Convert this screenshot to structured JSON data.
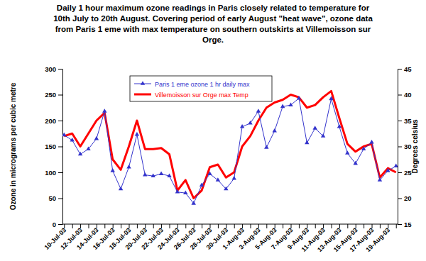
{
  "chart_data": {
    "type": "line",
    "title": [
      "Daily 1 hour maximum ozone readings in Paris closely related to temperature for",
      "10th July to 20th August. Covering period of early August \"heat wave\", ozone data",
      "from Paris 1 eme with max temperature on southern outskirts at Villemoisson sur",
      "Orge."
    ],
    "y_label": "Ozone in micrograms per cubic metre",
    "y2_label": "Degrees celsius",
    "categories": [
      "10-Jul-03",
      null,
      "12-Jul-03",
      null,
      "14-Jul-03",
      null,
      "16-Jul-03",
      null,
      "18-Jul-03",
      null,
      "20-Jul-03",
      null,
      "22-Jul-03",
      null,
      "24-Jul-03",
      null,
      "26-Jul-03",
      null,
      "28-Jul-03",
      null,
      "30-Jul-03",
      null,
      "1-Aug-03",
      null,
      "3-Aug-03",
      null,
      "5-Aug-03",
      null,
      "7-Aug-03",
      null,
      "9-Aug-03",
      null,
      "11-Aug-03",
      null,
      "13-Aug-03",
      null,
      "15-Aug-03",
      null,
      "17-Aug-03",
      null,
      "19-Aug-03",
      null
    ],
    "series": [
      {
        "name": "Paris 1 eme ozone 1 hr daily max",
        "color": "#3333cc",
        "marker": "triangle",
        "values": [
          172,
          162,
          135,
          145,
          165,
          218,
          103,
          68,
          110,
          173,
          95,
          93,
          97,
          93,
          62,
          60,
          40,
          75,
          97,
          85,
          68,
          88,
          188,
          195,
          218,
          148,
          180,
          227,
          230,
          243,
          157,
          185,
          170,
          242,
          188,
          137,
          117,
          145,
          158,
          85,
          103,
          112
        ]
      },
      {
        "name": "Villemoisson sur Orge max Temp",
        "color": "#ff0000",
        "axis": "y2",
        "values": [
          32,
          32.5,
          30,
          32.5,
          35,
          36.5,
          27.5,
          25.5,
          30,
          35,
          29.5,
          29.5,
          29.7,
          28.5,
          21.5,
          23.5,
          20,
          21.5,
          26,
          26.5,
          24,
          25,
          30,
          32,
          35,
          37.5,
          38.5,
          39,
          40,
          39.5,
          37.5,
          38,
          39.5,
          40.7,
          35.5,
          30.5,
          29,
          30,
          30.5,
          24,
          25.8,
          25
        ]
      }
    ],
    "ylim": [
      0,
      300
    ],
    "yticks": [
      0,
      50,
      100,
      150,
      200,
      250,
      300
    ],
    "y2lim": [
      15,
      45
    ],
    "y2ticks": [
      15,
      20,
      25,
      30,
      35,
      40,
      45
    ],
    "legend": "upper left",
    "grid": false
  }
}
